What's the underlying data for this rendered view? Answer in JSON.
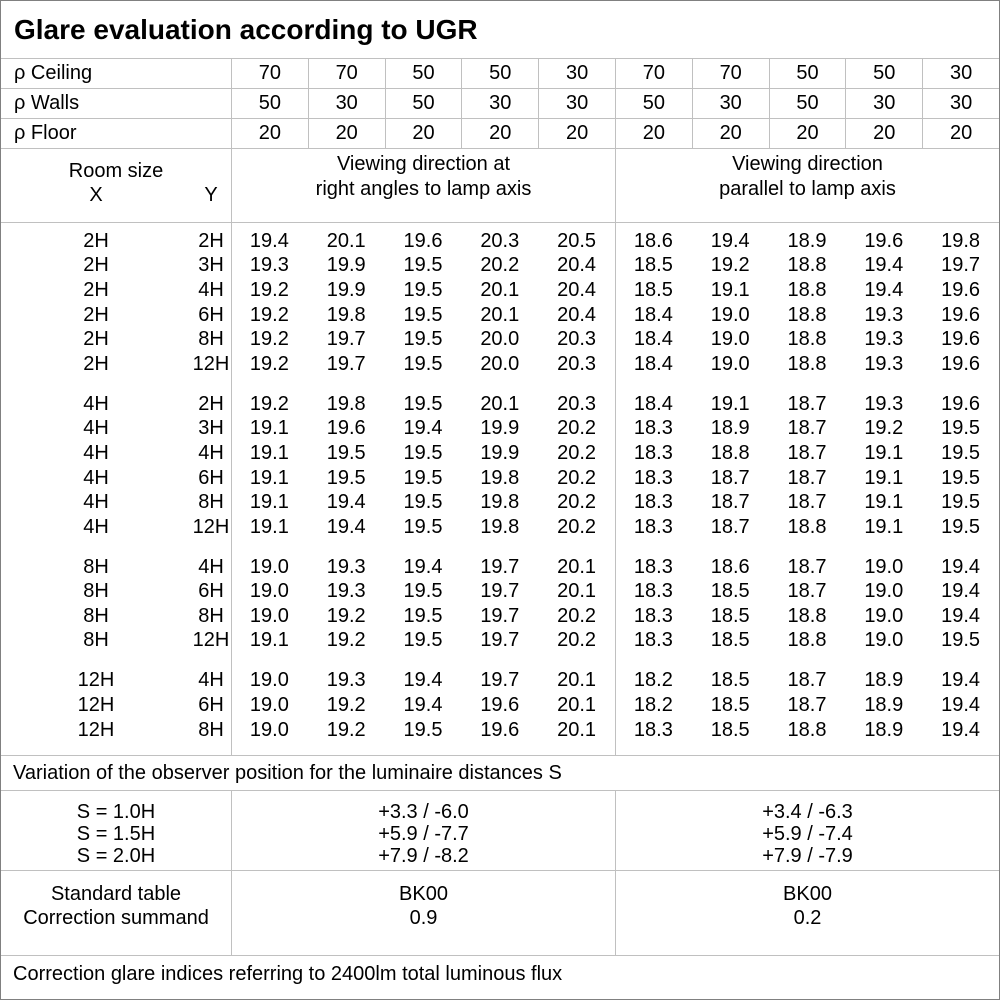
{
  "title": "Glare evaluation according to UGR",
  "colors": {
    "background": "#ffffff",
    "text": "#000000",
    "grid_line": "#c0c0c0",
    "outer_border": "#808080"
  },
  "reflectance_rows": [
    {
      "label": "ρ Ceiling",
      "values": [
        "70",
        "70",
        "50",
        "50",
        "30",
        "70",
        "70",
        "50",
        "50",
        "30"
      ]
    },
    {
      "label": "ρ Walls",
      "values": [
        "50",
        "30",
        "50",
        "30",
        "30",
        "50",
        "30",
        "50",
        "30",
        "30"
      ]
    },
    {
      "label": "ρ Floor",
      "values": [
        "20",
        "20",
        "20",
        "20",
        "20",
        "20",
        "20",
        "20",
        "20",
        "20"
      ]
    }
  ],
  "header": {
    "room_size": "Room size",
    "x": "X",
    "y": "Y",
    "left_group_line1": "Viewing direction at",
    "left_group_line2": "right angles to lamp axis",
    "right_group_line1": "Viewing direction",
    "right_group_line2": "parallel to lamp axis"
  },
  "ugr_blocks": [
    {
      "rows": [
        {
          "x": "2H",
          "y": "2H",
          "values": [
            "19.4",
            "20.1",
            "19.6",
            "20.3",
            "20.5",
            "18.6",
            "19.4",
            "18.9",
            "19.6",
            "19.8"
          ]
        },
        {
          "x": "2H",
          "y": "3H",
          "values": [
            "19.3",
            "19.9",
            "19.5",
            "20.2",
            "20.4",
            "18.5",
            "19.2",
            "18.8",
            "19.4",
            "19.7"
          ]
        },
        {
          "x": "2H",
          "y": "4H",
          "values": [
            "19.2",
            "19.9",
            "19.5",
            "20.1",
            "20.4",
            "18.5",
            "19.1",
            "18.8",
            "19.4",
            "19.6"
          ]
        },
        {
          "x": "2H",
          "y": "6H",
          "values": [
            "19.2",
            "19.8",
            "19.5",
            "20.1",
            "20.4",
            "18.4",
            "19.0",
            "18.8",
            "19.3",
            "19.6"
          ]
        },
        {
          "x": "2H",
          "y": "8H",
          "values": [
            "19.2",
            "19.7",
            "19.5",
            "20.0",
            "20.3",
            "18.4",
            "19.0",
            "18.8",
            "19.3",
            "19.6"
          ]
        },
        {
          "x": "2H",
          "y": "12H",
          "values": [
            "19.2",
            "19.7",
            "19.5",
            "20.0",
            "20.3",
            "18.4",
            "19.0",
            "18.8",
            "19.3",
            "19.6"
          ]
        }
      ]
    },
    {
      "rows": [
        {
          "x": "4H",
          "y": "2H",
          "values": [
            "19.2",
            "19.8",
            "19.5",
            "20.1",
            "20.3",
            "18.4",
            "19.1",
            "18.7",
            "19.3",
            "19.6"
          ]
        },
        {
          "x": "4H",
          "y": "3H",
          "values": [
            "19.1",
            "19.6",
            "19.4",
            "19.9",
            "20.2",
            "18.3",
            "18.9",
            "18.7",
            "19.2",
            "19.5"
          ]
        },
        {
          "x": "4H",
          "y": "4H",
          "values": [
            "19.1",
            "19.5",
            "19.5",
            "19.9",
            "20.2",
            "18.3",
            "18.8",
            "18.7",
            "19.1",
            "19.5"
          ]
        },
        {
          "x": "4H",
          "y": "6H",
          "values": [
            "19.1",
            "19.5",
            "19.5",
            "19.8",
            "20.2",
            "18.3",
            "18.7",
            "18.7",
            "19.1",
            "19.5"
          ]
        },
        {
          "x": "4H",
          "y": "8H",
          "values": [
            "19.1",
            "19.4",
            "19.5",
            "19.8",
            "20.2",
            "18.3",
            "18.7",
            "18.7",
            "19.1",
            "19.5"
          ]
        },
        {
          "x": "4H",
          "y": "12H",
          "values": [
            "19.1",
            "19.4",
            "19.5",
            "19.8",
            "20.2",
            "18.3",
            "18.7",
            "18.8",
            "19.1",
            "19.5"
          ]
        }
      ]
    },
    {
      "rows": [
        {
          "x": "8H",
          "y": "4H",
          "values": [
            "19.0",
            "19.3",
            "19.4",
            "19.7",
            "20.1",
            "18.3",
            "18.6",
            "18.7",
            "19.0",
            "19.4"
          ]
        },
        {
          "x": "8H",
          "y": "6H",
          "values": [
            "19.0",
            "19.3",
            "19.5",
            "19.7",
            "20.1",
            "18.3",
            "18.5",
            "18.7",
            "19.0",
            "19.4"
          ]
        },
        {
          "x": "8H",
          "y": "8H",
          "values": [
            "19.0",
            "19.2",
            "19.5",
            "19.7",
            "20.2",
            "18.3",
            "18.5",
            "18.8",
            "19.0",
            "19.4"
          ]
        },
        {
          "x": "8H",
          "y": "12H",
          "values": [
            "19.1",
            "19.2",
            "19.5",
            "19.7",
            "20.2",
            "18.3",
            "18.5",
            "18.8",
            "19.0",
            "19.5"
          ]
        }
      ]
    },
    {
      "rows": [
        {
          "x": "12H",
          "y": "4H",
          "values": [
            "19.0",
            "19.3",
            "19.4",
            "19.7",
            "20.1",
            "18.2",
            "18.5",
            "18.7",
            "18.9",
            "19.4"
          ]
        },
        {
          "x": "12H",
          "y": "6H",
          "values": [
            "19.0",
            "19.2",
            "19.4",
            "19.6",
            "20.1",
            "18.2",
            "18.5",
            "18.7",
            "18.9",
            "19.4"
          ]
        },
        {
          "x": "12H",
          "y": "8H",
          "values": [
            "19.0",
            "19.2",
            "19.5",
            "19.6",
            "20.1",
            "18.3",
            "18.5",
            "18.8",
            "18.9",
            "19.4"
          ]
        }
      ]
    }
  ],
  "variation": {
    "note": "Variation of the observer position for the luminaire distances S",
    "rows": [
      {
        "label": "S = 1.0H",
        "left": "+3.3 / -6.0",
        "right": "+3.4 / -6.3"
      },
      {
        "label": "S = 1.5H",
        "left": "+5.9 / -7.7",
        "right": "+5.9 / -7.4"
      },
      {
        "label": "S = 2.0H",
        "left": "+7.9 / -8.2",
        "right": "+7.9 / -7.9"
      }
    ]
  },
  "standard": {
    "row_labels": [
      "Standard table",
      "Correction summand"
    ],
    "left": [
      "BK00",
      "0.9"
    ],
    "right": [
      "BK00",
      "0.2"
    ]
  },
  "footer": "Correction glare indices referring to 2400lm total luminous flux"
}
